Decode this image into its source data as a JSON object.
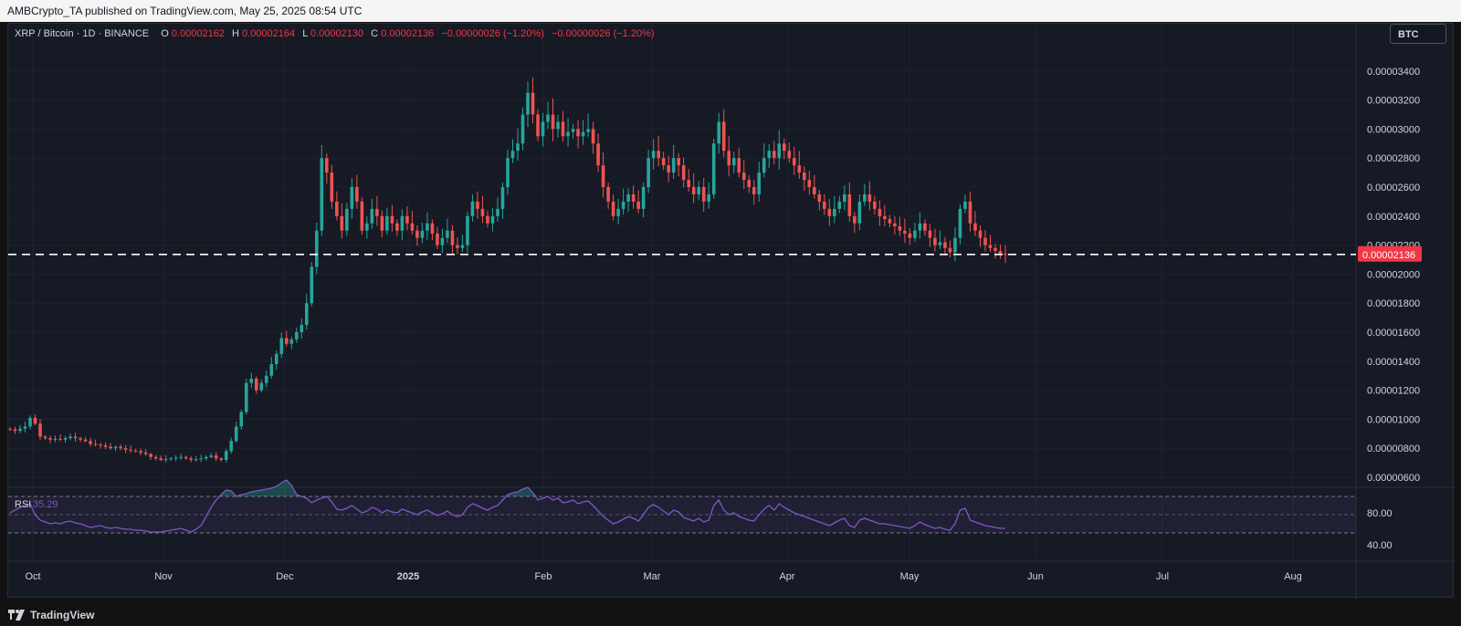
{
  "header": {
    "publisher_line": "AMBCrypto_TA published on TradingView.com, May 25, 2025 08:54 UTC"
  },
  "legend": {
    "symbol": "XRP / Bitcoin · 1D · BINANCE",
    "o_label": "O",
    "o_value": "0.00002162",
    "h_label": "H",
    "h_value": "0.00002164",
    "l_label": "L",
    "l_value": "0.00002130",
    "c_label": "C",
    "c_value": "0.00002136",
    "change": "−0.00000026 (−1.20%)",
    "change2": "−0.00000026 (−1.20%)"
  },
  "currency_button": "BTC",
  "price_axis": {
    "ticks": [
      "0.00003400",
      "0.00003200",
      "0.00003000",
      "0.00002800",
      "0.00002600",
      "0.00002400",
      "0.00002200",
      "0.00002000",
      "0.00001800",
      "0.00001600",
      "0.00001400",
      "0.00001200",
      "0.00001000",
      "0.00000800",
      "0.00000600"
    ],
    "current_price_label": "0.00002136",
    "current_price": 2.136e-05
  },
  "rsi": {
    "label": "RSI",
    "value": "35.29",
    "ticks": [
      "80.00",
      "40.00"
    ],
    "upper_band": 70,
    "lower_band": 30
  },
  "time_axis": {
    "ticks": [
      "Oct",
      "Nov",
      "Dec",
      "2025",
      "Feb",
      "Mar",
      "Apr",
      "May",
      "Jun",
      "Jul",
      "Aug"
    ]
  },
  "footer": {
    "brand": "TradingView"
  },
  "colors": {
    "up": "#26a69a",
    "down": "#ef5350",
    "rsi_line": "#7e57c2",
    "price_label_bg": "#f23645"
  },
  "chart_data": {
    "type": "candlestick",
    "symbol": "XRP / Bitcoin",
    "interval": "1D",
    "exchange": "BINANCE",
    "ylim": [
      5.5e-06,
      3.6e-05
    ],
    "close_series": [
      9.3e-06,
      9.2e-06,
      9.35e-06,
      9.5e-06,
      1.01e-05,
      9.7e-06,
      8.8e-06,
      8.7e-06,
      8.6e-06,
      8.65e-06,
      8.6e-06,
      8.7e-06,
      8.8e-06,
      8.7e-06,
      8.6e-06,
      8.5e-06,
      8.3e-06,
      8.25e-06,
      8.2e-06,
      8.1e-06,
      8e-06,
      8.1e-06,
      8e-06,
      7.9e-06,
      7.85e-06,
      7.8e-06,
      7.7e-06,
      7.6e-06,
      7.4e-06,
      7.3e-06,
      7.2e-06,
      7.25e-06,
      7.3e-06,
      7.35e-06,
      7.4e-06,
      7.3e-06,
      7.2e-06,
      7.25e-06,
      7.3e-06,
      7.4e-06,
      7.5e-06,
      7.3e-06,
      7.2e-06,
      7.8e-06,
      8.5e-06,
      9.5e-06,
      1.05e-05,
      1.25e-05,
      1.28e-05,
      1.2e-05,
      1.25e-05,
      1.3e-05,
      1.38e-05,
      1.45e-05,
      1.56e-05,
      1.52e-05,
      1.55e-05,
      1.6e-05,
      1.65e-05,
      1.8e-05,
      2.05e-05,
      2.3e-05,
      2.8e-05,
      2.7e-05,
      2.5e-05,
      2.4e-05,
      2.3e-05,
      2.45e-05,
      2.6e-05,
      2.5e-05,
      2.3e-05,
      2.35e-05,
      2.45e-05,
      2.4e-05,
      2.3e-05,
      2.4e-05,
      2.35e-05,
      2.3e-05,
      2.4e-05,
      2.35e-05,
      2.3e-05,
      2.25e-05,
      2.3e-05,
      2.35e-05,
      2.28e-05,
      2.2e-05,
      2.25e-05,
      2.3e-05,
      2.2e-05,
      2.18e-05,
      2.2e-05,
      2.4e-05,
      2.5e-05,
      2.45e-05,
      2.4e-05,
      2.35e-05,
      2.4e-05,
      2.45e-05,
      2.6e-05,
      2.8e-05,
      2.85e-05,
      2.9e-05,
      3.1e-05,
      3.25e-05,
      3.1e-05,
      2.95e-05,
      3.05e-05,
      3.1e-05,
      3e-05,
      3.05e-05,
      2.95e-05,
      2.98e-05,
      3e-05,
      2.95e-05,
      2.98e-05,
      3e-05,
      2.9e-05,
      2.75e-05,
      2.6e-05,
      2.5e-05,
      2.4e-05,
      2.45e-05,
      2.5e-05,
      2.55e-05,
      2.5e-05,
      2.45e-05,
      2.6e-05,
      2.8e-05,
      2.85e-05,
      2.8e-05,
      2.75e-05,
      2.7e-05,
      2.8e-05,
      2.75e-05,
      2.65e-05,
      2.6e-05,
      2.55e-05,
      2.6e-05,
      2.5e-05,
      2.55e-05,
      2.9e-05,
      3.05e-05,
      2.85e-05,
      2.75e-05,
      2.8e-05,
      2.7e-05,
      2.65e-05,
      2.6e-05,
      2.55e-05,
      2.7e-05,
      2.8e-05,
      2.85e-05,
      2.8e-05,
      2.9e-05,
      2.85e-05,
      2.8e-05,
      2.75e-05,
      2.7e-05,
      2.65e-05,
      2.6e-05,
      2.55e-05,
      2.5e-05,
      2.45e-05,
      2.4e-05,
      2.45e-05,
      2.5e-05,
      2.55e-05,
      2.4e-05,
      2.35e-05,
      2.5e-05,
      2.55e-05,
      2.5e-05,
      2.45e-05,
      2.4e-05,
      2.38e-05,
      2.35e-05,
      2.33e-05,
      2.3e-05,
      2.28e-05,
      2.25e-05,
      2.3e-05,
      2.35e-05,
      2.3e-05,
      2.25e-05,
      2.2e-05,
      2.22e-05,
      2.18e-05,
      2.15e-05,
      2.25e-05,
      2.45e-05,
      2.5e-05,
      2.35e-05,
      2.3e-05,
      2.25e-05,
      2.2e-05,
      2.18e-05,
      2.16e-05,
      2.14e-05,
      2.136e-05
    ],
    "rsi_series": [
      52,
      55,
      58,
      60,
      62,
      50,
      44,
      42,
      40,
      41,
      40,
      42,
      43,
      41,
      40,
      38,
      36,
      37,
      38,
      36,
      35,
      36,
      35,
      34,
      34,
      33,
      33,
      32,
      31,
      31,
      31,
      32,
      33,
      34,
      35,
      33,
      31,
      34,
      38,
      48,
      58,
      66,
      72,
      77,
      76,
      70,
      72,
      73,
      75,
      76,
      77,
      78,
      79,
      81,
      85,
      88,
      82,
      72,
      70,
      68,
      63,
      66,
      68,
      70,
      64,
      56,
      55,
      57,
      60,
      56,
      52,
      54,
      58,
      56,
      52,
      55,
      53,
      52,
      56,
      54,
      52,
      50,
      53,
      55,
      52,
      49,
      51,
      54,
      50,
      48,
      50,
      58,
      62,
      60,
      57,
      55,
      58,
      60,
      66,
      72,
      74,
      75,
      78,
      80,
      74,
      66,
      68,
      70,
      66,
      68,
      63,
      64,
      66,
      62,
      64,
      65,
      60,
      54,
      48,
      44,
      40,
      42,
      45,
      48,
      46,
      43,
      50,
      58,
      61,
      58,
      54,
      50,
      55,
      53,
      47,
      45,
      43,
      46,
      42,
      44,
      60,
      66,
      55,
      50,
      52,
      48,
      46,
      44,
      43,
      50,
      56,
      60,
      55,
      62,
      58,
      55,
      52,
      50,
      48,
      46,
      44,
      42,
      40,
      38,
      41,
      44,
      46,
      38,
      36,
      44,
      46,
      44,
      42,
      40,
      40,
      39,
      38,
      37,
      36,
      35,
      38,
      42,
      39,
      37,
      35,
      36,
      34,
      33,
      40,
      55,
      57,
      44,
      42,
      40,
      38,
      37,
      36,
      35,
      35
    ]
  }
}
